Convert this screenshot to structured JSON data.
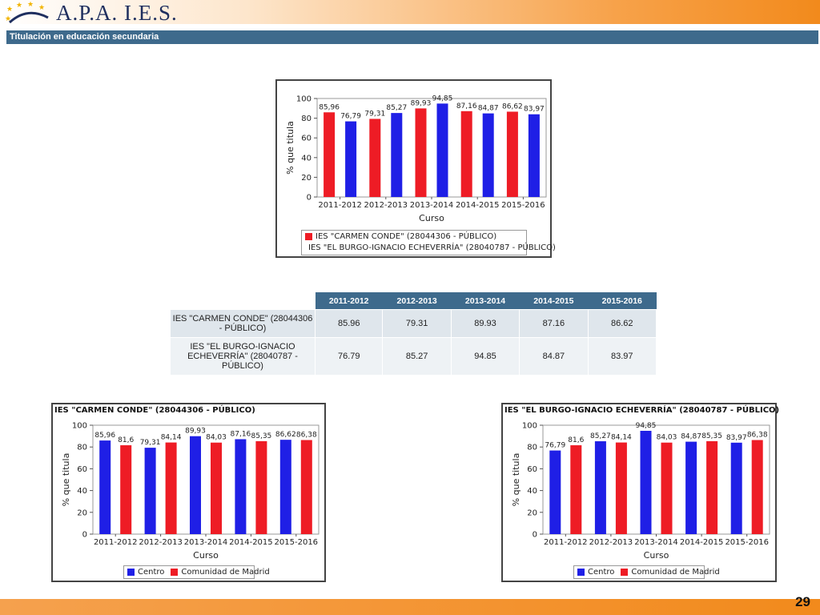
{
  "header": {
    "logo_text": "A.P.A. I.E.S."
  },
  "section_title": "Titulación en educación secundaria",
  "page_number": "29",
  "colors": {
    "centro": "#ee1c25",
    "egi": "#1f1fe6",
    "madrid": "#ee1c25",
    "header_bar": "#3e6a8c"
  },
  "chart_data": [
    {
      "type": "bar",
      "title": "",
      "categories": [
        "2011-2012",
        "2012-2013",
        "2013-2014",
        "2014-2015",
        "2015-2016"
      ],
      "series": [
        {
          "name": "IES \"CARMEN CONDE\" (28044306 - PÚBLICO)",
          "values": [
            85.96,
            79.31,
            89.93,
            87.16,
            86.62
          ],
          "labels": [
            "85,96",
            "79,31",
            "89,93",
            "87,16",
            "86,62"
          ],
          "color": "#ee1c25"
        },
        {
          "name": "IES \"EL BURGO-IGNACIO ECHEVERRÍA\" (28040787 - PÚBLICO)",
          "values": [
            76.79,
            85.27,
            94.85,
            84.87,
            83.97
          ],
          "labels": [
            "76,79",
            "85,27",
            "94,85",
            "84,87",
            "83,97"
          ],
          "color": "#1f1fe6"
        }
      ],
      "xlabel": "Curso",
      "ylabel": "% que titula",
      "ylim": [
        0,
        100
      ],
      "yticks": [
        "0",
        "20",
        "40",
        "60",
        "80",
        "100"
      ]
    },
    {
      "type": "bar",
      "title": "IES \"CARMEN CONDE\" (28044306 - PÚBLICO)",
      "categories": [
        "2011-2012",
        "2012-2013",
        "2013-2014",
        "2014-2015",
        "2015-2016"
      ],
      "series": [
        {
          "name": "Centro",
          "values": [
            85.96,
            79.31,
            89.93,
            87.16,
            86.62
          ],
          "labels": [
            "85,96",
            "79,31",
            "89,93",
            "87,16",
            "86,62"
          ],
          "color": "#1f1fe6"
        },
        {
          "name": "Comunidad de Madrid",
          "values": [
            81.6,
            84.14,
            84.03,
            85.35,
            86.38
          ],
          "labels": [
            "81,6",
            "84,14",
            "84,03",
            "85,35",
            "86,38"
          ],
          "color": "#ee1c25"
        }
      ],
      "xlabel": "Curso",
      "ylabel": "% que titula",
      "ylim": [
        0,
        100
      ],
      "yticks": [
        "0",
        "20",
        "40",
        "60",
        "80",
        "100"
      ]
    },
    {
      "type": "bar",
      "title": "IES \"EL BURGO-IGNACIO ECHEVERRÍA\" (28040787 - PÚBLICO)",
      "categories": [
        "2011-2012",
        "2012-2013",
        "2013-2014",
        "2014-2015",
        "2015-2016"
      ],
      "series": [
        {
          "name": "Centro",
          "values": [
            76.79,
            85.27,
            94.85,
            84.87,
            83.97
          ],
          "labels": [
            "76,79",
            "85,27",
            "94,85",
            "84,87",
            "83,97"
          ],
          "color": "#1f1fe6"
        },
        {
          "name": "Comunidad de Madrid",
          "values": [
            81.6,
            84.14,
            84.03,
            85.35,
            86.38
          ],
          "labels": [
            "81,6",
            "84,14",
            "84,03",
            "85,35",
            "86,38"
          ],
          "color": "#ee1c25"
        }
      ],
      "xlabel": "Curso",
      "ylabel": "% que titula",
      "ylim": [
        0,
        100
      ],
      "yticks": [
        "0",
        "20",
        "40",
        "60",
        "80",
        "100"
      ]
    }
  ],
  "table": {
    "headers": [
      "",
      "2011-2012",
      "2012-2013",
      "2013-2014",
      "2014-2015",
      "2015-2016"
    ],
    "rows": [
      {
        "name": "IES \"CARMEN CONDE\" (28044306 - PÚBLICO)",
        "values": [
          "85.96",
          "79.31",
          "89.93",
          "87.16",
          "86.62"
        ]
      },
      {
        "name": "IES \"EL BURGO-IGNACIO ECHEVERRÍA\" (28040787 - PÚBLICO)",
        "values": [
          "76.79",
          "85.27",
          "94.85",
          "84.87",
          "83.97"
        ]
      }
    ]
  }
}
